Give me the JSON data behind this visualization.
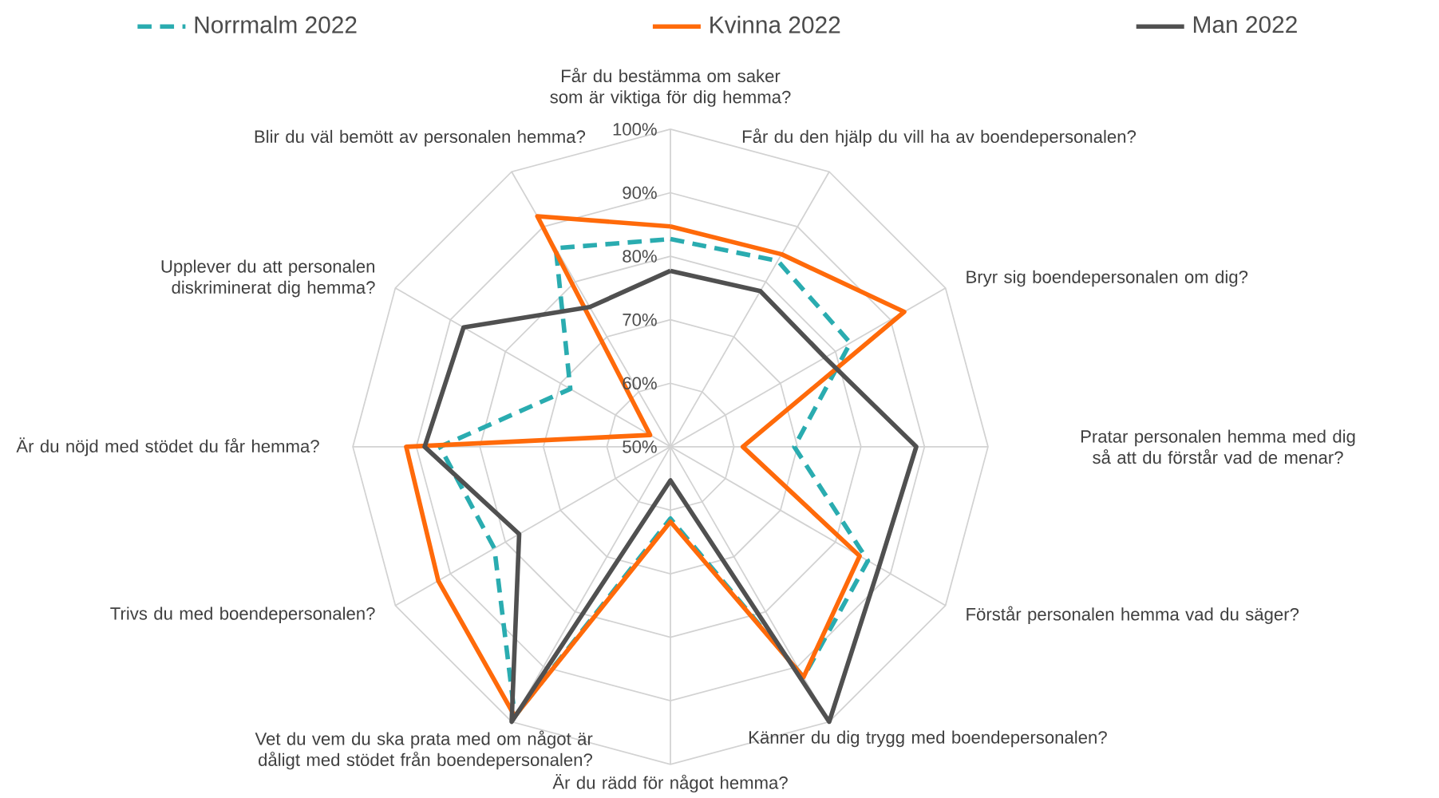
{
  "chart_data": {
    "type": "radar",
    "categories": [
      "Får du bestämma om saker som är viktiga för dig hemma?",
      "Får du den hjälp du vill ha av boendepersonalen?",
      "Bryr sig boendepersonalen om dig?",
      "Pratar personalen hemma med dig så att du förstår vad de menar?",
      "Förstår personalen hemma vad du säger?",
      "Känner du dig trygg med boendepersonalen?",
      "Är du rädd för något hemma?",
      "Vet du vem du ska prata med om något är dåligt med stödet från boendepersonalen?",
      "Trivs du med boendepersonalen?",
      "Är du nöjd med stödet du får hemma?",
      "Upplever du att personalen diskriminerat dig hemma?",
      "Blir du väl bemött av personalen hemma?"
    ],
    "series": [
      {
        "name": "Norrmalm 2022",
        "color": "#2aacb0",
        "line_style": "dashed",
        "values": [
          82.7,
          83.8,
          82.7,
          69.5,
          85.9,
          91.9,
          61.3,
          99,
          82,
          86.3,
          68.2,
          86.1
        ]
      },
      {
        "name": "Kvinna 2022",
        "color": "#ff6a0a",
        "line_style": "solid",
        "values": [
          84.7,
          85,
          92.5,
          61.4,
          84.4,
          91.9,
          61.8,
          99,
          92.2,
          91.6,
          53.7,
          91.9
        ]
      },
      {
        "name": "Man 2022",
        "color": "#505050",
        "line_style": "solid",
        "values": [
          77.7,
          78.3,
          78.1,
          88.7,
          87.9,
          100,
          55.3,
          100,
          77.5,
          88.7,
          87.6,
          75.4
        ]
      }
    ],
    "ylim": [
      50,
      100
    ],
    "yticks": [
      {
        "value": 50,
        "label": "50%"
      },
      {
        "value": 60,
        "label": "60%"
      },
      {
        "value": 70,
        "label": "70%"
      },
      {
        "value": 80,
        "label": "80%"
      },
      {
        "value": 90,
        "label": "90%"
      },
      {
        "value": 100,
        "label": "100%"
      }
    ],
    "grid": true,
    "legend": "top"
  }
}
